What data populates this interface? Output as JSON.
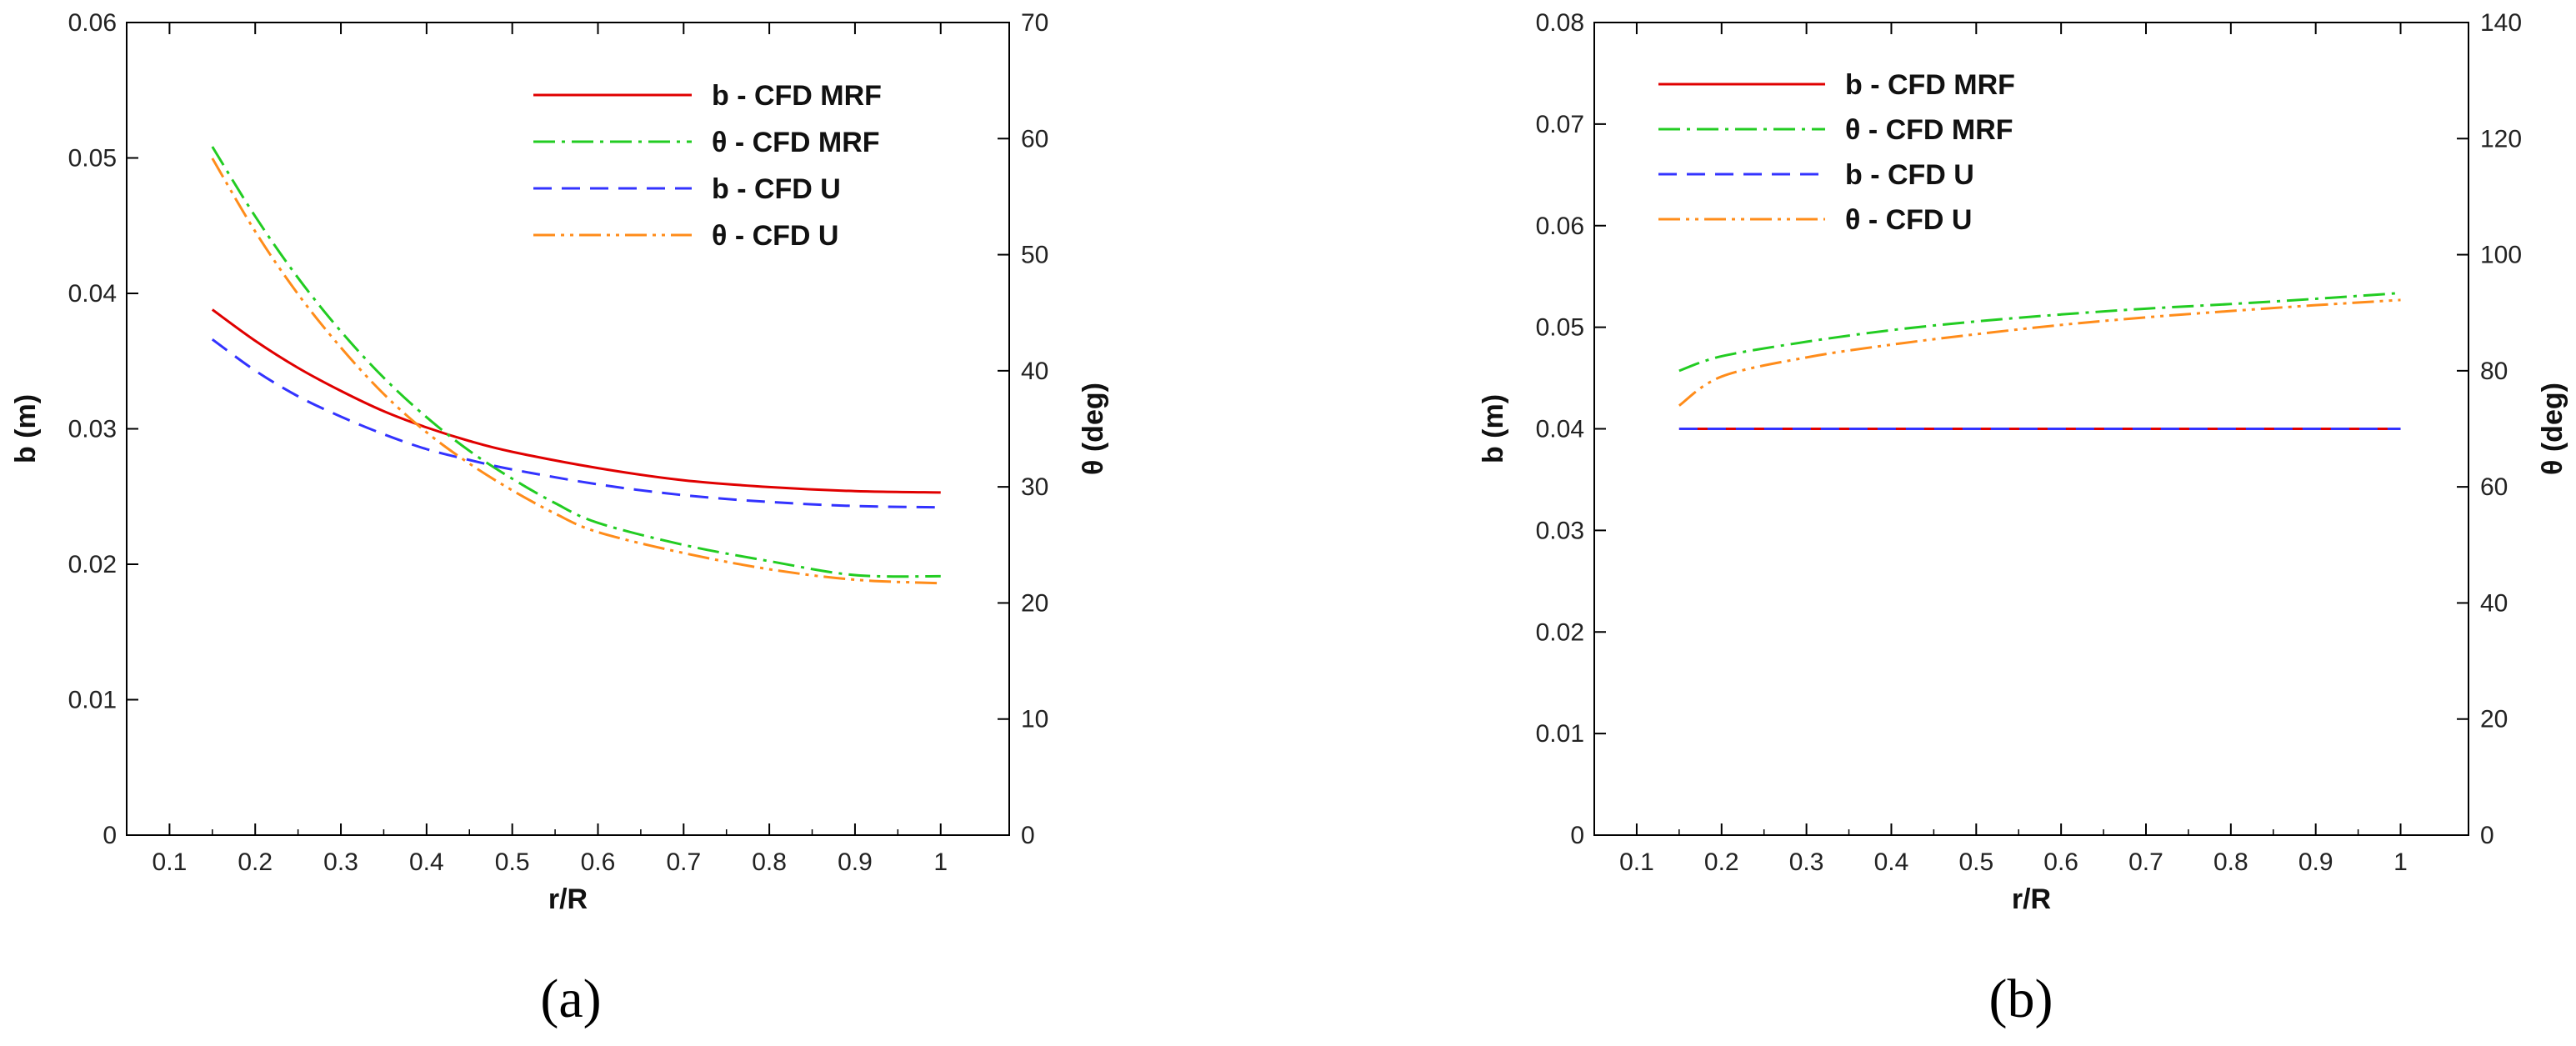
{
  "chart_data": [
    {
      "type": "line",
      "panel_label": "(a)",
      "xlabel": "r/R",
      "ylabel_left": "b (m)",
      "ylabel_right": "θ (deg)",
      "xlim": [
        0.05,
        1.08
      ],
      "ylim_left": [
        0,
        0.06
      ],
      "ylim_right": [
        0,
        70
      ],
      "x_ticks": [
        0.1,
        0.2,
        0.3,
        0.4,
        0.5,
        0.6,
        0.7,
        0.8,
        0.9,
        1
      ],
      "x_tick_labels": [
        "0.1",
        "0.2",
        "0.3",
        "0.4",
        "0.5",
        "0.6",
        "0.7",
        "0.8",
        "0.9",
        "1"
      ],
      "y_left_ticks": [
        0,
        0.01,
        0.02,
        0.03,
        0.04,
        0.05,
        0.06
      ],
      "y_left_tick_labels": [
        "0",
        "0.01",
        "0.02",
        "0.03",
        "0.04",
        "0.05",
        "0.06"
      ],
      "y_right_ticks": [
        0,
        10,
        20,
        30,
        40,
        50,
        60,
        70
      ],
      "y_right_tick_labels": [
        "0",
        "10",
        "20",
        "30",
        "40",
        "50",
        "60",
        "70"
      ],
      "grid": false,
      "legend_position": "top-right",
      "series": [
        {
          "name": "b - CFD MRF",
          "axis": "left",
          "color": "#e00000",
          "dash": "solid",
          "x": [
            0.15,
            0.2,
            0.25,
            0.3,
            0.35,
            0.4,
            0.45,
            0.5,
            0.6,
            0.7,
            0.8,
            0.9,
            1.0
          ],
          "values": [
            0.0388,
            0.0365,
            0.0345,
            0.0328,
            0.0313,
            0.0301,
            0.0291,
            0.0283,
            0.0271,
            0.0262,
            0.0257,
            0.0254,
            0.0253
          ]
        },
        {
          "name": "θ - CFD MRF",
          "axis": "right",
          "color": "#22cc22",
          "dash": "dashdot",
          "x": [
            0.15,
            0.2,
            0.25,
            0.3,
            0.35,
            0.4,
            0.45,
            0.5,
            0.55,
            0.6,
            0.7,
            0.8,
            0.9,
            1.0
          ],
          "values": [
            59.3,
            53.3,
            48.0,
            43.4,
            39.4,
            36.0,
            33.1,
            30.7,
            28.6,
            26.9,
            25.0,
            23.6,
            22.4,
            22.3
          ]
        },
        {
          "name": "b - CFD U",
          "axis": "left",
          "color": "#3333ff",
          "dash": "dashed",
          "x": [
            0.15,
            0.2,
            0.25,
            0.3,
            0.35,
            0.4,
            0.45,
            0.5,
            0.6,
            0.7,
            0.8,
            0.9,
            1.0
          ],
          "values": [
            0.0366,
            0.0343,
            0.0324,
            0.0309,
            0.0296,
            0.0285,
            0.0277,
            0.027,
            0.0259,
            0.0251,
            0.0246,
            0.0243,
            0.0242
          ]
        },
        {
          "name": "θ - CFD U",
          "axis": "right",
          "color": "#ff8c1a",
          "dash": "dashdotdot",
          "x": [
            0.15,
            0.2,
            0.25,
            0.3,
            0.35,
            0.4,
            0.45,
            0.5,
            0.55,
            0.6,
            0.7,
            0.8,
            0.9,
            1.0
          ],
          "values": [
            58.3,
            52.0,
            46.6,
            42.0,
            38.0,
            34.7,
            32.0,
            29.7,
            27.7,
            26.1,
            24.3,
            22.9,
            22.0,
            21.7
          ]
        }
      ]
    },
    {
      "type": "line",
      "panel_label": "(b)",
      "xlabel": "r/R",
      "ylabel_left": "b (m)",
      "ylabel_right": "θ (deg)",
      "xlim": [
        0.05,
        1.08
      ],
      "ylim_left": [
        0,
        0.08
      ],
      "ylim_right": [
        0,
        140
      ],
      "x_ticks": [
        0.1,
        0.2,
        0.3,
        0.4,
        0.5,
        0.6,
        0.7,
        0.8,
        0.9,
        1
      ],
      "x_tick_labels": [
        "0.1",
        "0.2",
        "0.3",
        "0.4",
        "0.5",
        "0.6",
        "0.7",
        "0.8",
        "0.9",
        "1"
      ],
      "y_left_ticks": [
        0,
        0.01,
        0.02,
        0.03,
        0.04,
        0.05,
        0.06,
        0.07,
        0.08
      ],
      "y_left_tick_labels": [
        "0",
        "0.01",
        "0.02",
        "0.03",
        "0.04",
        "0.05",
        "0.06",
        "0.07",
        "0.08"
      ],
      "y_right_ticks": [
        0,
        20,
        40,
        60,
        80,
        100,
        120,
        140
      ],
      "y_right_tick_labels": [
        "0",
        "20",
        "40",
        "60",
        "80",
        "100",
        "120",
        "140"
      ],
      "grid": false,
      "legend_position": "top-left",
      "series": [
        {
          "name": "b - CFD MRF",
          "axis": "left",
          "color": "#e00000",
          "dash": "solid",
          "x": [
            0.15,
            1.0
          ],
          "values": [
            0.04,
            0.04
          ]
        },
        {
          "name": "θ - CFD MRF",
          "axis": "right",
          "color": "#22cc22",
          "dash": "dashdot",
          "x": [
            0.15,
            0.2,
            0.3,
            0.4,
            0.5,
            0.6,
            0.7,
            0.8,
            0.9,
            1.0
          ],
          "values": [
            80.0,
            82.5,
            85.0,
            87.0,
            88.5,
            89.7,
            90.7,
            91.5,
            92.4,
            93.4
          ]
        },
        {
          "name": "b - CFD U",
          "axis": "left",
          "color": "#3333ff",
          "dash": "dashed",
          "x": [
            0.15,
            1.0
          ],
          "values": [
            0.04,
            0.04
          ]
        },
        {
          "name": "θ - CFD U",
          "axis": "right",
          "color": "#ff8c1a",
          "dash": "dashdotdot",
          "x": [
            0.15,
            0.2,
            0.3,
            0.4,
            0.5,
            0.6,
            0.7,
            0.8,
            0.9,
            1.0
          ],
          "values": [
            74.0,
            79.0,
            82.3,
            84.5,
            86.3,
            87.9,
            89.2,
            90.3,
            91.3,
            92.2
          ]
        }
      ]
    }
  ]
}
